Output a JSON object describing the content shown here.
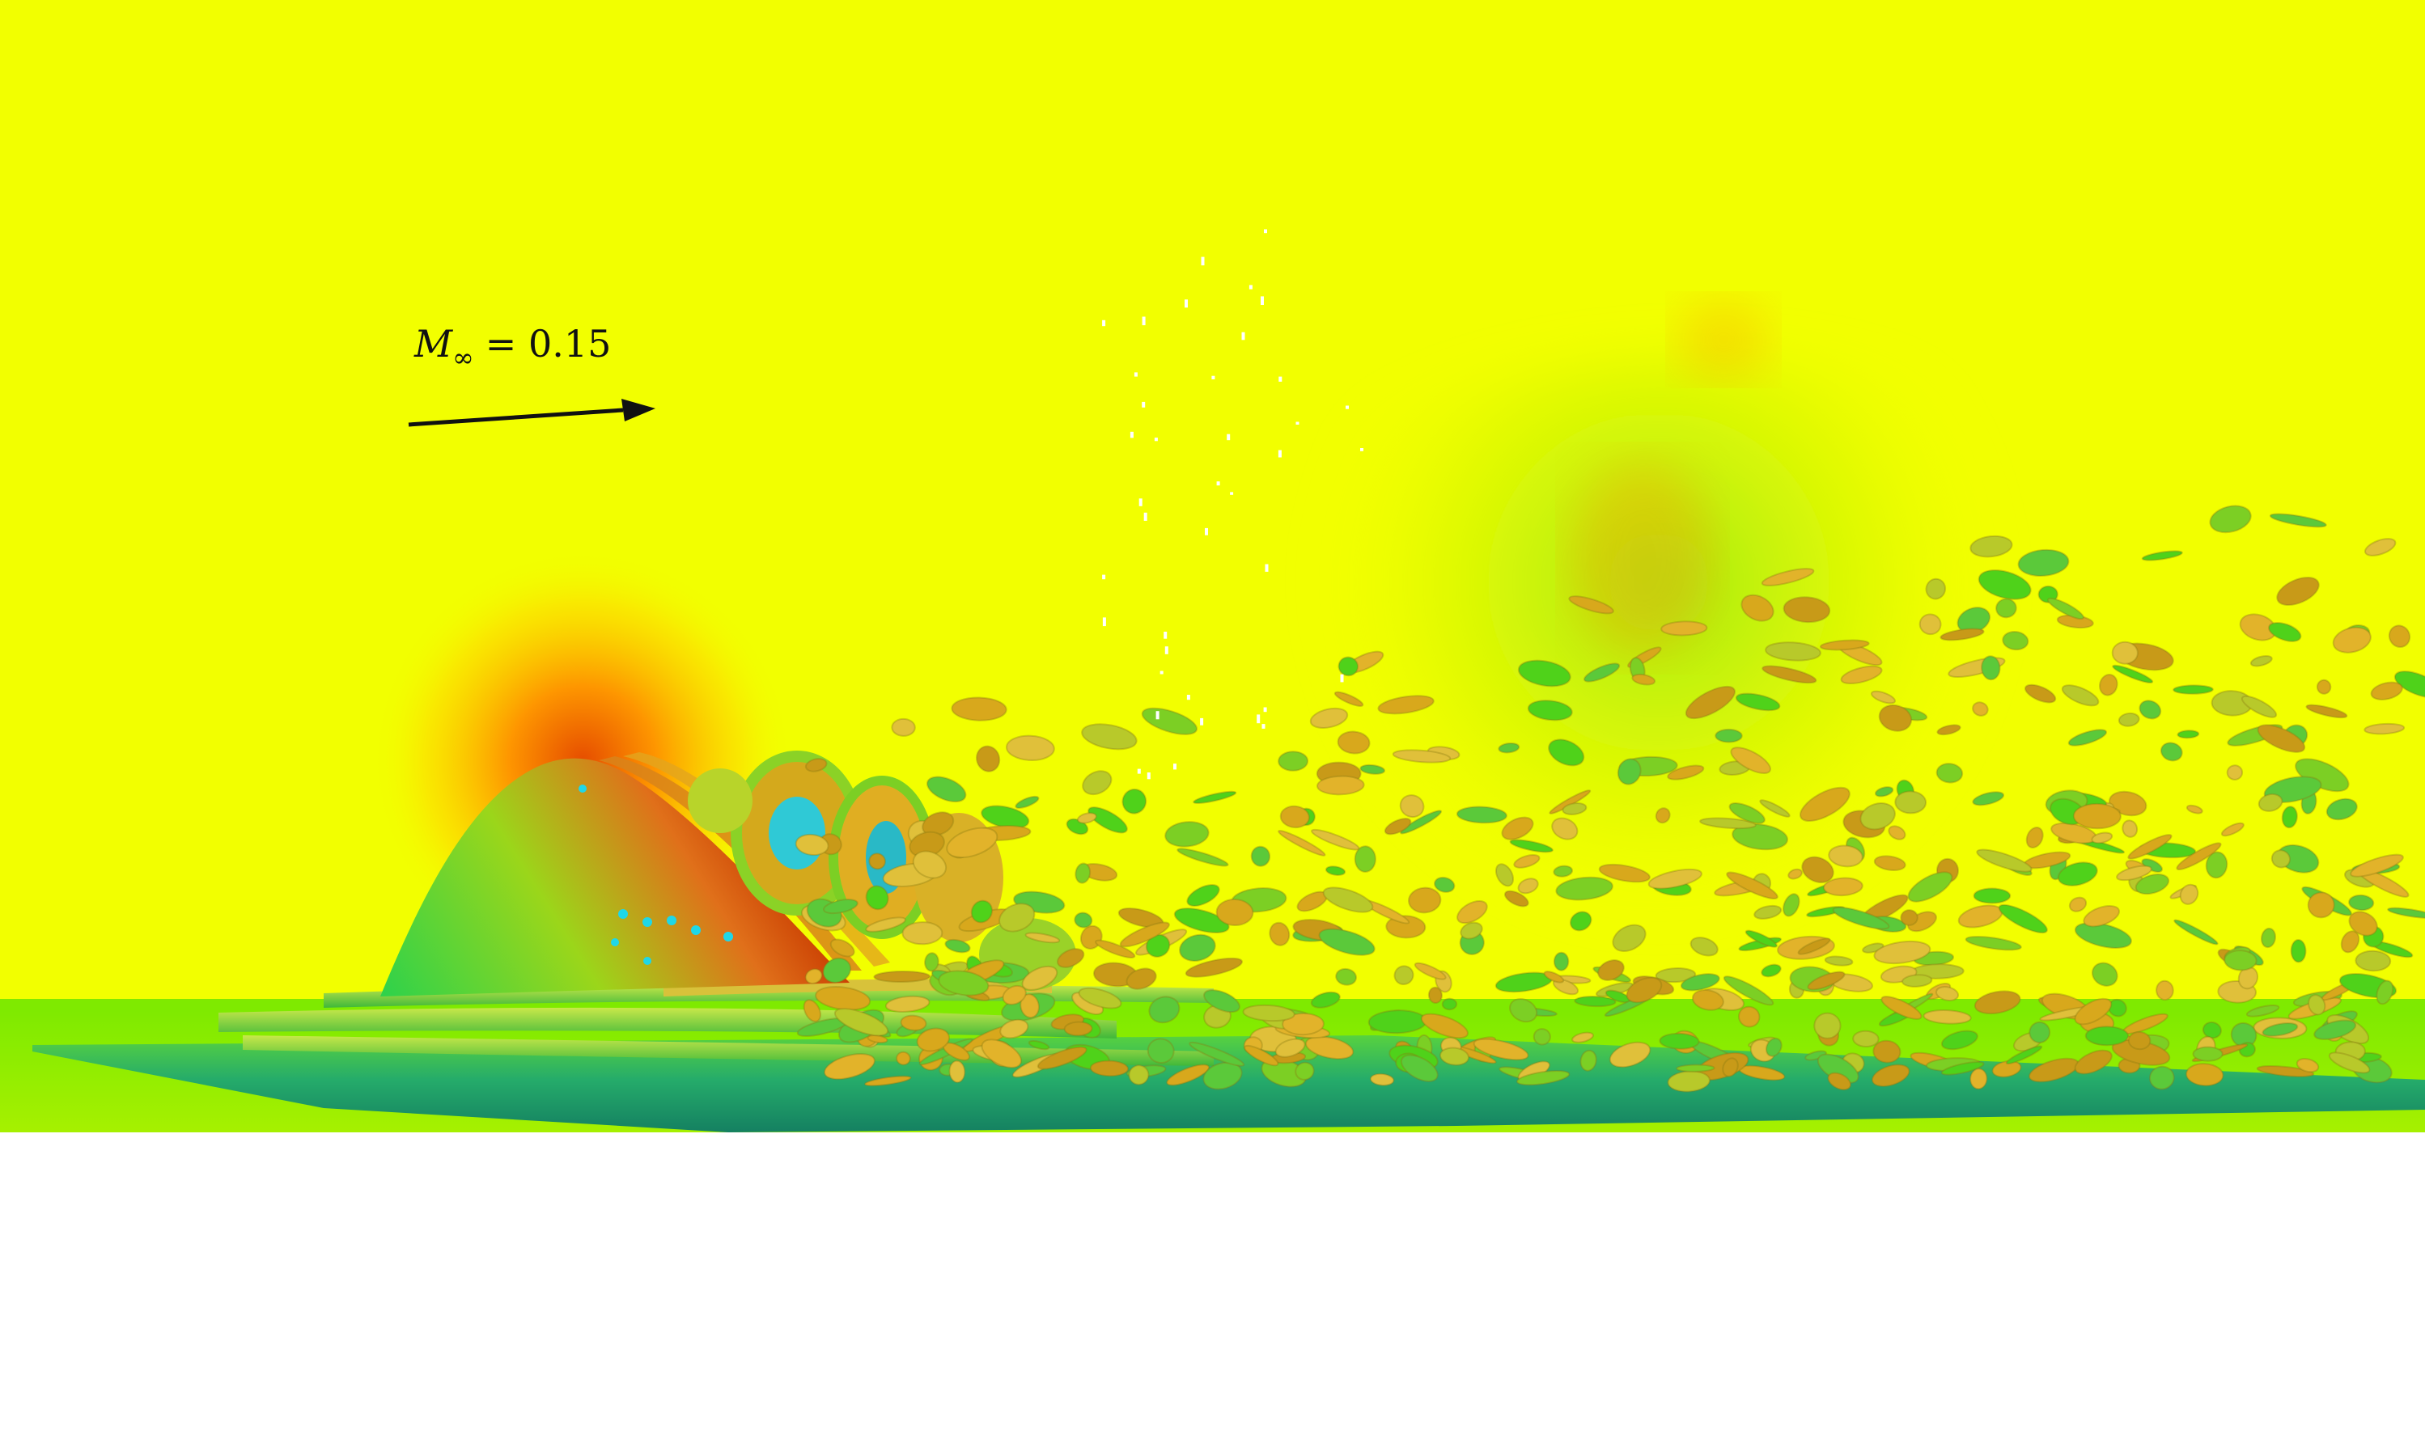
{
  "figure": {
    "annotation": {
      "symbol": "M",
      "subscript": "∞",
      "operator": "=",
      "value": "0.15"
    },
    "colors": {
      "freestream": "#f2ff00",
      "high_pressure": "#e53a00",
      "low_pressure": "#1fd7e8",
      "vortex_green": "#4fd21a",
      "vortex_gold": "#d8a81c",
      "ground": "#7fea00"
    },
    "icons": {
      "flow_arrow": "arrow-right-icon",
      "flow_structures": "vortex-isosurface-icon"
    }
  }
}
